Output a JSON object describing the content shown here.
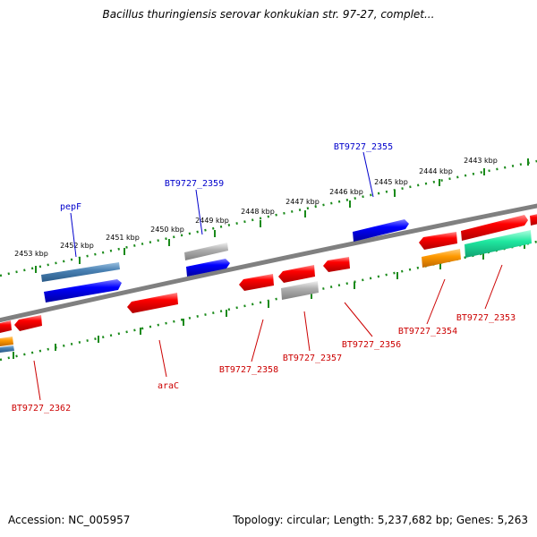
{
  "title": "Bacillus thuringiensis serovar konkukian str. 97-27, complet...",
  "footer": {
    "accession": "Accession: NC_005957",
    "summary": "Topology: circular; Length: 5,237,682 bp; Genes: 5,263"
  },
  "colors": {
    "forward_label": "#0000cc",
    "reverse_label": "#cc0000",
    "tick_track": "#1a8a1a",
    "backbone": "#808080"
  },
  "kbp_labels": [
    "2453 kbp",
    "2452 kbp",
    "2451 kbp",
    "2450 kbp",
    "2449 kbp",
    "2448 kbp",
    "2447 kbp",
    "2446 kbp",
    "2445 kbp",
    "2444 kbp",
    "2443 kbp"
  ],
  "gene_labels": {
    "pepF": "pepF",
    "bt2359": "BT9727_2359",
    "bt2355": "BT9727_2355",
    "bt2362": "BT9727_2362",
    "araC": "araC",
    "bt2358": "BT9727_2358",
    "bt2357": "BT9727_2357",
    "bt2356": "BT9727_2356",
    "bt2354": "BT9727_2354",
    "bt2353": "BT9727_2353"
  }
}
